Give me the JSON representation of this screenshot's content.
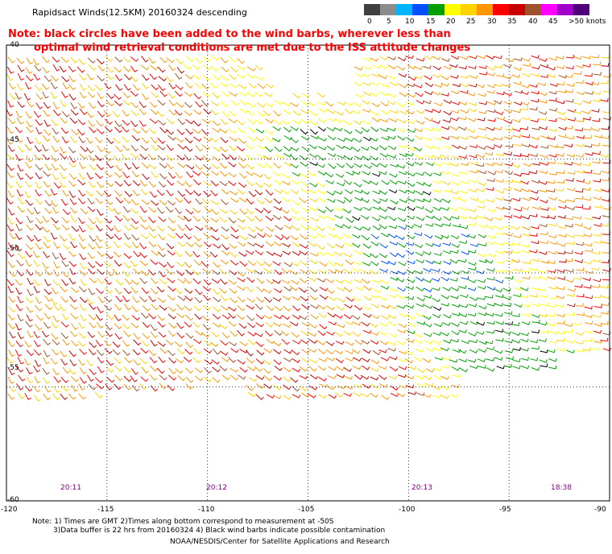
{
  "header": {
    "title": "Rapidsact Winds(12.5KM) 20160324 descending",
    "note_line1": "Note: black circles have been added to the wind barbs, wherever less than",
    "note_line2": "optimal wind retrieval conditions are met due to the ISS attitude changes"
  },
  "colorbar": {
    "swatches": [
      "#404040",
      "#8c8c8c",
      "#00b4ff",
      "#0050ff",
      "#00a000",
      "#ffff00",
      "#ffd200",
      "#ff9600",
      "#ff0000",
      "#c80000",
      "#a0522d",
      "#ff00ff",
      "#a000c8",
      "#500078"
    ],
    "labels": [
      "0",
      "5",
      "10",
      "15",
      "20",
      "25",
      "30",
      "35",
      "40",
      "45",
      ">50 knots"
    ]
  },
  "map": {
    "lat_labels": [
      "-40",
      "-45",
      "-50",
      "-55",
      "-60"
    ],
    "lon_labels": [
      "-120",
      "-115",
      "-110",
      "-105",
      "-100",
      "-95",
      "-90"
    ],
    "lat_values": [
      -40,
      -45,
      -50,
      -55,
      -60
    ],
    "lon_values": [
      -120,
      -115,
      -110,
      -105,
      -100,
      -95,
      -90
    ],
    "pass_times": [
      "20:11",
      "20:12",
      "20:13",
      "18:38"
    ],
    "pass_time_lon": [
      -117,
      -110,
      -100,
      -92
    ]
  },
  "footer": {
    "line1": "Note: 1) Times are GMT 2)Times along bottom correspond to measurement at -50S",
    "line2": "3)Data buffer is 22 hrs from 20160324 4) Black wind barbs indicate possible contamination",
    "line3": "NOAA/NESDIS/Center for Satellite Applications and Research"
  }
}
